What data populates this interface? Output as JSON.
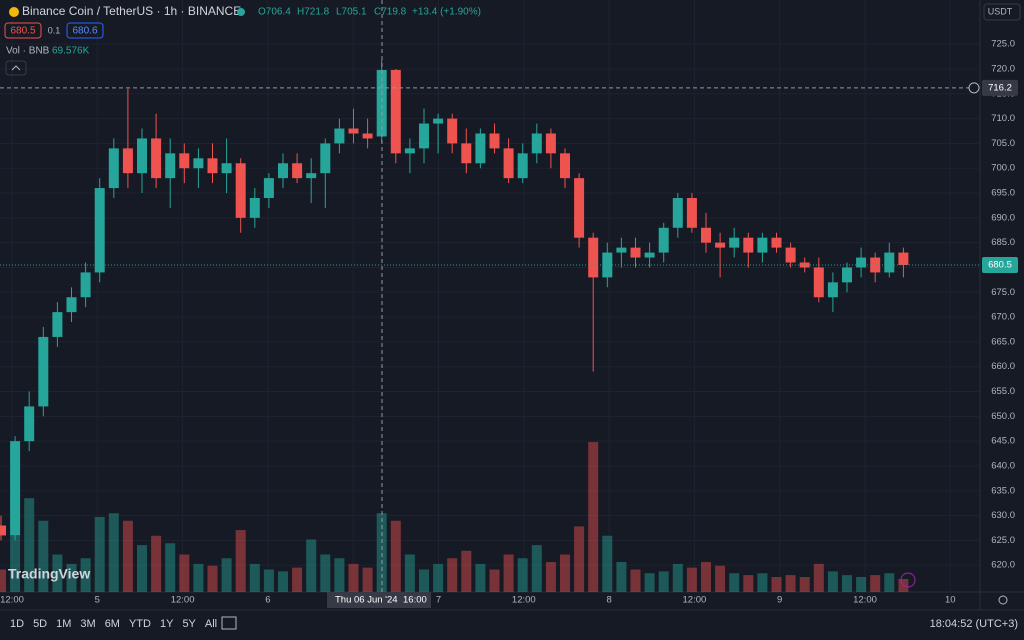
{
  "header": {
    "symbol": "Binance Coin / TetherUS · 1h · BINANCE",
    "open": "O706.4",
    "high": "H721.8",
    "low": "L705.1",
    "close": "C719.8",
    "change": "+13.4 (+1.90%)",
    "bid": "680.5",
    "spread": "0.1",
    "ask": "680.6",
    "vol_label": "Vol · BNB",
    "vol_value": "69.576K",
    "currency": "USDT"
  },
  "chart_data": {
    "type": "candlestick",
    "open": [
      628,
      626,
      645,
      652,
      666,
      671,
      674,
      679,
      696,
      704,
      699,
      706,
      698,
      703,
      700,
      702,
      699,
      701,
      690,
      694,
      698,
      701,
      698,
      699,
      705,
      708,
      707,
      706.4,
      719.8,
      703,
      704,
      709,
      710,
      705,
      701,
      707,
      704,
      698,
      703,
      707,
      703,
      698,
      686,
      678,
      683,
      684,
      682,
      683,
      688,
      694,
      688,
      685,
      684,
      686,
      683,
      686,
      684,
      681,
      680,
      674,
      677,
      680,
      682,
      679,
      683
    ],
    "high": [
      630,
      646,
      655,
      668,
      673,
      676,
      681,
      698,
      706,
      716,
      708,
      711,
      706,
      705,
      704,
      705,
      706,
      702,
      696,
      699,
      703,
      703,
      702,
      706,
      710,
      712,
      710,
      721.8,
      720,
      706,
      712,
      711,
      711,
      708,
      708,
      709,
      706,
      705,
      709,
      708,
      704,
      699,
      687,
      685,
      686,
      686,
      685,
      689,
      695,
      695,
      691,
      687,
      688,
      687,
      687,
      687,
      685,
      682,
      682,
      679,
      681,
      684,
      683,
      685,
      684
    ],
    "low": [
      625,
      625,
      643,
      650,
      664,
      669,
      672,
      677,
      694,
      696,
      695,
      696,
      692,
      697,
      696,
      697,
      695,
      687,
      688,
      692,
      696,
      697,
      693,
      692,
      703,
      705,
      704,
      705.1,
      701,
      699,
      701,
      703,
      703,
      699,
      700,
      703,
      697,
      697,
      701,
      700,
      696,
      684,
      659,
      676,
      680,
      680,
      680,
      681,
      686,
      687,
      683,
      678,
      682,
      680,
      681,
      683,
      680,
      679,
      673,
      671,
      675,
      678,
      677,
      678,
      678
    ],
    "close": [
      626,
      645,
      652,
      666,
      671,
      674,
      679,
      696,
      704,
      699,
      706,
      698,
      703,
      700,
      702,
      699,
      701,
      690,
      694,
      698,
      701,
      698,
      699,
      705,
      708,
      707,
      706,
      719.8,
      703,
      704,
      709,
      710,
      705,
      701,
      707,
      704,
      698,
      703,
      707,
      703,
      698,
      686,
      678,
      683,
      684,
      682,
      683,
      688,
      694,
      688,
      685,
      684,
      686,
      683,
      686,
      684,
      681,
      680,
      674,
      677,
      680,
      682,
      679,
      683,
      680.5
    ],
    "volume": [
      120,
      300,
      500,
      380,
      200,
      150,
      180,
      400,
      420,
      380,
      250,
      300,
      260,
      200,
      150,
      140,
      180,
      330,
      150,
      120,
      110,
      130,
      280,
      200,
      180,
      150,
      130,
      420,
      380,
      200,
      120,
      150,
      180,
      220,
      150,
      120,
      200,
      180,
      250,
      160,
      200,
      350,
      800,
      300,
      160,
      120,
      100,
      110,
      150,
      130,
      160,
      140,
      100,
      90,
      100,
      80,
      90,
      80,
      150,
      110,
      90,
      80,
      90,
      100,
      69.576
    ],
    "up_color": "#26a69a",
    "down_color": "#ef5350",
    "ylim": [
      733.9,
      614.6
    ],
    "yticks": [
      {
        "value": 725,
        "label": "725.0"
      },
      {
        "value": 720,
        "label": "720.0"
      },
      {
        "value": 715,
        "label": "715.0"
      },
      {
        "value": 710,
        "label": "710.0"
      },
      {
        "value": 705,
        "label": "705.0"
      },
      {
        "value": 700,
        "label": "700.0"
      },
      {
        "value": 695,
        "label": "695.0"
      },
      {
        "value": 690,
        "label": "690.0"
      },
      {
        "value": 685,
        "label": "685.0"
      },
      {
        "value": 680,
        "label": "680.0"
      },
      {
        "value": 675,
        "label": "675.0"
      },
      {
        "value": 670,
        "label": "670.0"
      },
      {
        "value": 665,
        "label": "665.0"
      },
      {
        "value": 660,
        "label": "660.0"
      },
      {
        "value": 655,
        "label": "655.0"
      },
      {
        "value": 650,
        "label": "650.0"
      },
      {
        "value": 645,
        "label": "645.0"
      },
      {
        "value": 640,
        "label": "640.0"
      },
      {
        "value": 635,
        "label": "635.0"
      },
      {
        "value": 630,
        "label": "630.0"
      },
      {
        "value": 625,
        "label": "625.0"
      },
      {
        "value": 620,
        "label": "620.0"
      }
    ],
    "time_labels": [
      "12:00",
      "5",
      "12:00",
      "6",
      null,
      "7",
      "12:00",
      "8",
      "12:00",
      "9",
      "12:00",
      "10"
    ],
    "crosshair_price": {
      "value": 716.2,
      "label": "716.2"
    },
    "crosshair_date": "Thu 06 Jun '24",
    "crosshair_time": "16:00",
    "last_price": {
      "value": 680.5,
      "label": "680.5"
    }
  },
  "toolbar": {
    "ranges": [
      "1D",
      "5D",
      "1M",
      "3M",
      "6M",
      "YTD",
      "1Y",
      "5Y",
      "All"
    ],
    "clock": "18:04:52 (UTC+3)"
  },
  "logo": "TradingView"
}
